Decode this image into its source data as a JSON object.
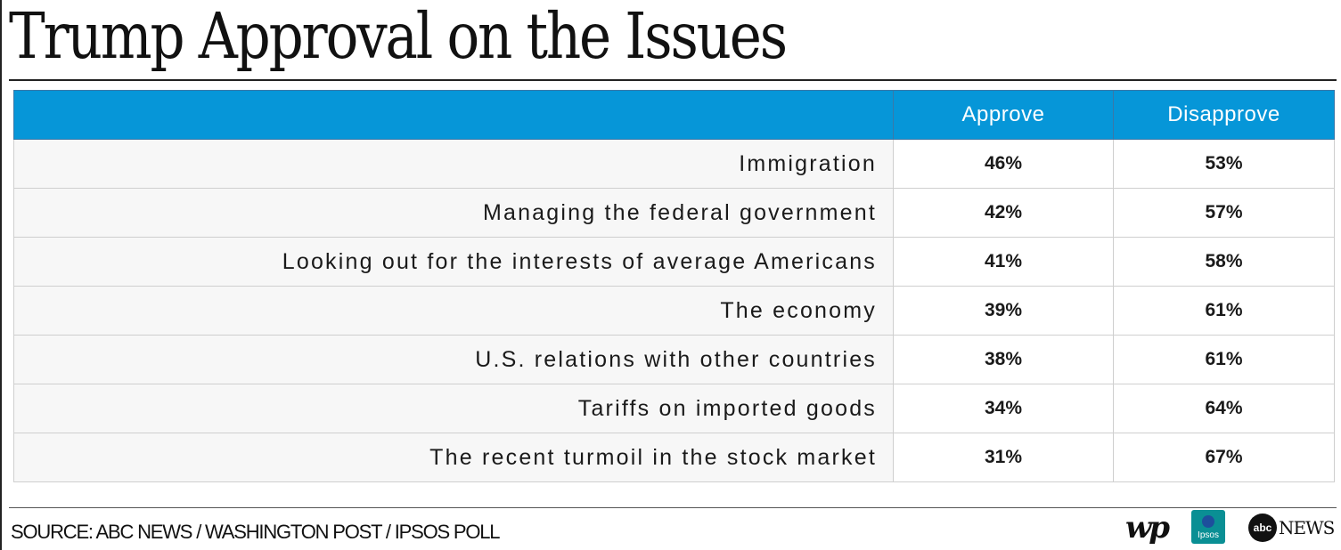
{
  "title": "Trump Approval on the Issues",
  "columns": {
    "issue": "",
    "approve": "Approve",
    "disapprove": "Disapprove"
  },
  "chart_data": {
    "type": "table",
    "title": "Trump Approval on the Issues",
    "columns": [
      "",
      "Approve",
      "Disapprove"
    ],
    "rows": [
      {
        "issue": "Immigration",
        "approve": "46%",
        "disapprove": "53%"
      },
      {
        "issue": "Managing the federal government",
        "approve": "42%",
        "disapprove": "57%"
      },
      {
        "issue": "Looking out for the interests of average Americans",
        "approve": "41%",
        "disapprove": "58%"
      },
      {
        "issue": "The economy",
        "approve": "39%",
        "disapprove": "61%"
      },
      {
        "issue": "U.S. relations with other countries",
        "approve": "38%",
        "disapprove": "61%"
      },
      {
        "issue": "Tariffs on imported goods",
        "approve": "34%",
        "disapprove": "64%"
      },
      {
        "issue": "The recent turmoil in the stock market",
        "approve": "31%",
        "disapprove": "67%"
      }
    ]
  },
  "source": "SOURCE: ABC NEWS / WASHINGTON POST / IPSOS POLL",
  "logos": {
    "washington_post": "wp",
    "ipsos": "Ipsos",
    "abc": "abc",
    "abc_news": "NEWS"
  },
  "colors": {
    "header_bg": "#0696d8",
    "header_text": "#ffffff",
    "issue_cell_bg": "#f7f7f7",
    "value_cell_bg": "#ffffff",
    "ipsos_green": "#0a8f94"
  }
}
